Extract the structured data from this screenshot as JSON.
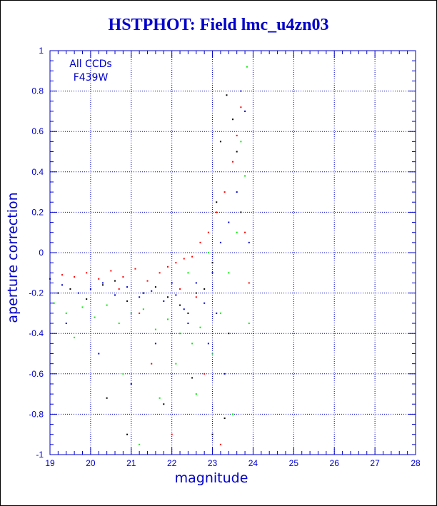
{
  "title": "HSTPHOT: Field lmc_u4zn03",
  "annotation_lines": [
    "All CCDs",
    "F439W"
  ],
  "colors": {
    "axis": "#0000cc",
    "title": "#0000cc",
    "grid": "#0000cc",
    "series": {
      "black": "#000000",
      "red": "#ff0000",
      "green": "#00ee00",
      "blue": "#0000cc"
    }
  },
  "chart_data": {
    "type": "scatter",
    "title": "HSTPHOT: Field lmc_u4zn03",
    "xlabel": "magnitude",
    "ylabel": "aperture correction",
    "xlim": [
      19,
      28
    ],
    "ylim": [
      -1,
      1
    ],
    "x_ticks": [
      "19",
      "20",
      "21",
      "22",
      "23",
      "24",
      "25",
      "26",
      "27",
      "28"
    ],
    "y_ticks": [
      "-1",
      "-0.8",
      "-0.6",
      "-0.4",
      "-0.2",
      "0",
      "0.2",
      "0.4",
      "0.6",
      "0.8",
      "1"
    ],
    "grid": true,
    "series": [
      {
        "color": "#000000",
        "points": [
          [
            19.2,
            -0.2
          ],
          [
            19.5,
            -0.18
          ],
          [
            19.9,
            -0.23
          ],
          [
            20.3,
            -0.16
          ],
          [
            20.6,
            -0.14
          ],
          [
            20.9,
            -0.24
          ],
          [
            21.3,
            -0.2
          ],
          [
            21.6,
            -0.17
          ],
          [
            21.9,
            -0.22
          ],
          [
            22.2,
            -0.26
          ],
          [
            22.4,
            -0.3
          ],
          [
            22.6,
            -0.2
          ],
          [
            22.8,
            -0.18
          ],
          [
            23.0,
            -0.05
          ],
          [
            23.1,
            0.25
          ],
          [
            23.2,
            0.55
          ],
          [
            23.35,
            0.78
          ],
          [
            23.5,
            0.66
          ],
          [
            23.6,
            0.5
          ],
          [
            23.3,
            -0.82
          ],
          [
            23.0,
            -0.9
          ],
          [
            22.5,
            -0.62
          ],
          [
            21.8,
            -0.75
          ],
          [
            20.4,
            -0.72
          ],
          [
            20.9,
            -0.9
          ],
          [
            23.7,
            0.2
          ],
          [
            23.4,
            -0.4
          ]
        ]
      },
      {
        "color": "#ff0000",
        "points": [
          [
            19.3,
            -0.11
          ],
          [
            19.6,
            -0.12
          ],
          [
            19.9,
            -0.1
          ],
          [
            20.2,
            -0.13
          ],
          [
            20.5,
            -0.09
          ],
          [
            20.8,
            -0.12
          ],
          [
            21.1,
            -0.08
          ],
          [
            21.4,
            -0.14
          ],
          [
            21.7,
            -0.1
          ],
          [
            21.9,
            -0.07
          ],
          [
            22.1,
            -0.05
          ],
          [
            22.3,
            -0.03
          ],
          [
            22.5,
            -0.02
          ],
          [
            22.7,
            0.05
          ],
          [
            22.9,
            0.1
          ],
          [
            23.1,
            0.2
          ],
          [
            23.3,
            0.3
          ],
          [
            23.5,
            0.45
          ],
          [
            23.6,
            0.58
          ],
          [
            23.7,
            0.72
          ],
          [
            22.2,
            -0.18
          ],
          [
            22.6,
            -0.22
          ],
          [
            21.5,
            -0.55
          ],
          [
            22.8,
            -0.6
          ],
          [
            23.2,
            -0.95
          ],
          [
            20.7,
            -0.18
          ],
          [
            23.8,
            0.1
          ],
          [
            23.9,
            -0.15
          ],
          [
            22.0,
            -0.9
          ],
          [
            21.2,
            -0.3
          ]
        ]
      },
      {
        "color": "#00ee00",
        "points": [
          [
            19.1,
            -0.25
          ],
          [
            19.4,
            -0.3
          ],
          [
            19.8,
            -0.27
          ],
          [
            20.1,
            -0.32
          ],
          [
            20.4,
            -0.26
          ],
          [
            20.7,
            -0.35
          ],
          [
            21.0,
            -0.3
          ],
          [
            21.3,
            -0.28
          ],
          [
            21.6,
            -0.38
          ],
          [
            21.9,
            -0.33
          ],
          [
            22.2,
            -0.4
          ],
          [
            22.5,
            -0.45
          ],
          [
            22.7,
            -0.37
          ],
          [
            23.0,
            -0.5
          ],
          [
            23.2,
            -0.3
          ],
          [
            23.4,
            -0.1
          ],
          [
            23.6,
            0.1
          ],
          [
            23.8,
            0.38
          ],
          [
            23.85,
            0.92
          ],
          [
            23.7,
            0.55
          ],
          [
            22.4,
            -0.1
          ],
          [
            22.9,
            0.0
          ],
          [
            20.8,
            -0.6
          ],
          [
            21.7,
            -0.72
          ],
          [
            22.6,
            -0.7
          ],
          [
            23.5,
            -0.8
          ],
          [
            19.6,
            -0.42
          ],
          [
            23.9,
            -0.35
          ],
          [
            22.1,
            -0.55
          ],
          [
            21.2,
            -0.95
          ]
        ]
      },
      {
        "color": "#0000cc",
        "points": [
          [
            19.0,
            -0.13
          ],
          [
            19.3,
            -0.16
          ],
          [
            19.7,
            -0.2
          ],
          [
            20.0,
            -0.18
          ],
          [
            20.3,
            -0.15
          ],
          [
            20.6,
            -0.21
          ],
          [
            20.9,
            -0.17
          ],
          [
            21.2,
            -0.22
          ],
          [
            21.5,
            -0.19
          ],
          [
            21.8,
            -0.24
          ],
          [
            22.1,
            -0.21
          ],
          [
            22.3,
            -0.28
          ],
          [
            22.6,
            -0.15
          ],
          [
            22.8,
            -0.25
          ],
          [
            23.0,
            -0.1
          ],
          [
            23.2,
            0.05
          ],
          [
            23.4,
            0.15
          ],
          [
            23.6,
            0.3
          ],
          [
            23.8,
            0.7
          ],
          [
            23.7,
            0.8
          ],
          [
            22.4,
            -0.35
          ],
          [
            22.9,
            -0.45
          ],
          [
            20.2,
            -0.5
          ],
          [
            21.0,
            -0.65
          ],
          [
            23.3,
            -0.6
          ],
          [
            23.9,
            0.05
          ],
          [
            19.4,
            -0.35
          ],
          [
            22.0,
            -0.15
          ],
          [
            23.1,
            -0.3
          ],
          [
            21.6,
            -0.45
          ]
        ]
      }
    ]
  }
}
